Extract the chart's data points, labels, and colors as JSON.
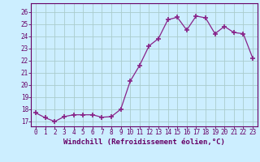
{
  "x": [
    0,
    1,
    2,
    3,
    4,
    5,
    6,
    7,
    8,
    9,
    10,
    11,
    12,
    13,
    14,
    15,
    16,
    17,
    18,
    19,
    20,
    21,
    22,
    23
  ],
  "y": [
    17.7,
    17.3,
    17.0,
    17.4,
    17.55,
    17.55,
    17.55,
    17.35,
    17.4,
    18.0,
    20.3,
    21.6,
    23.2,
    23.8,
    25.35,
    25.55,
    24.5,
    25.65,
    25.5,
    24.2,
    24.8,
    24.3,
    24.2,
    22.2
  ],
  "line_color": "#882288",
  "marker_color": "#882288",
  "bg_color": "#cceeff",
  "grid_color": "#aacccc",
  "ylabel_ticks": [
    17,
    18,
    19,
    20,
    21,
    22,
    23,
    24,
    25,
    26
  ],
  "ylim": [
    16.6,
    26.7
  ],
  "xlim": [
    -0.5,
    23.5
  ],
  "xlabel": "Windchill (Refroidissement éolien,°C)",
  "xtick_labels": [
    "0",
    "1",
    "2",
    "3",
    "4",
    "5",
    "6",
    "7",
    "8",
    "9",
    "10",
    "11",
    "12",
    "13",
    "14",
    "15",
    "16",
    "17",
    "18",
    "19",
    "20",
    "21",
    "22",
    "23"
  ],
  "tick_fontsize": 5.5,
  "xlabel_fontsize": 6.5
}
